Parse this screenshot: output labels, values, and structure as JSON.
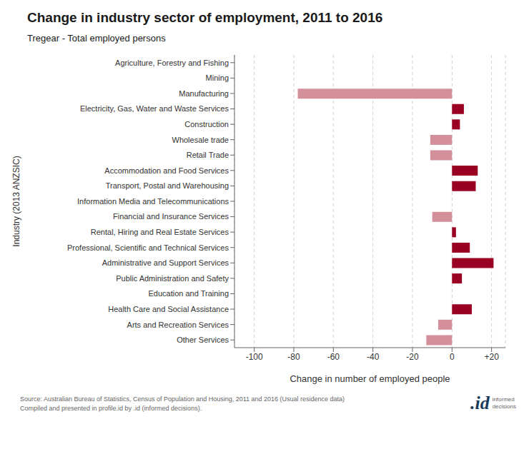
{
  "chart_data": {
    "type": "bar",
    "orientation": "horizontal",
    "title": "Change in industry sector of employment, 2011 to 2016",
    "subtitle": "Tregear - Total employed persons",
    "xlabel": "Change in number of employed people",
    "ylabel": "Industry (2013 ANZSIC)",
    "categories": [
      "Agriculture, Forestry and Fishing",
      "Mining",
      "Manufacturing",
      "Electricity, Gas, Water and Waste Services",
      "Construction",
      "Wholesale trade",
      "Retail Trade",
      "Accommodation and Food Services",
      "Transport, Postal and Warehousing",
      "Information Media and Telecommunications",
      "Financial and Insurance Services",
      "Rental, Hiring and Real Estate Services",
      "Professional, Scientific and Technical Services",
      "Administrative and Support Services",
      "Public Administration and Safety",
      "Education and Training",
      "Health Care and Social Assistance",
      "Arts and Recreation Services",
      "Other Services"
    ],
    "values": [
      0,
      0,
      -78,
      6,
      4,
      -11,
      -11,
      13,
      12,
      0,
      -10,
      2,
      9,
      21,
      5,
      0,
      10,
      -7,
      -13
    ],
    "colors": [
      "none",
      "none",
      "#d4909a",
      "#990022",
      "#990022",
      "#d4909a",
      "#d4909a",
      "#990022",
      "#990022",
      "none",
      "#d4909a",
      "#990022",
      "#990022",
      "#990022",
      "#990022",
      "none",
      "#990022",
      "#d4909a",
      "#d4909a"
    ],
    "xlim": [
      -110,
      27
    ],
    "xticks": [
      -100,
      -80,
      -60,
      -40,
      -20,
      0,
      {
        "value": 20,
        "label": "+20"
      }
    ],
    "grid": true,
    "annotations": [
      "Source: Australian Bureau of Statistics, Census of Population and Housing, 2011 and 2016 (Usual residence data)\nCompiled and presented in profile.id by .id (informed decisions).",
      ".id",
      "informed\ndecisions"
    ]
  }
}
